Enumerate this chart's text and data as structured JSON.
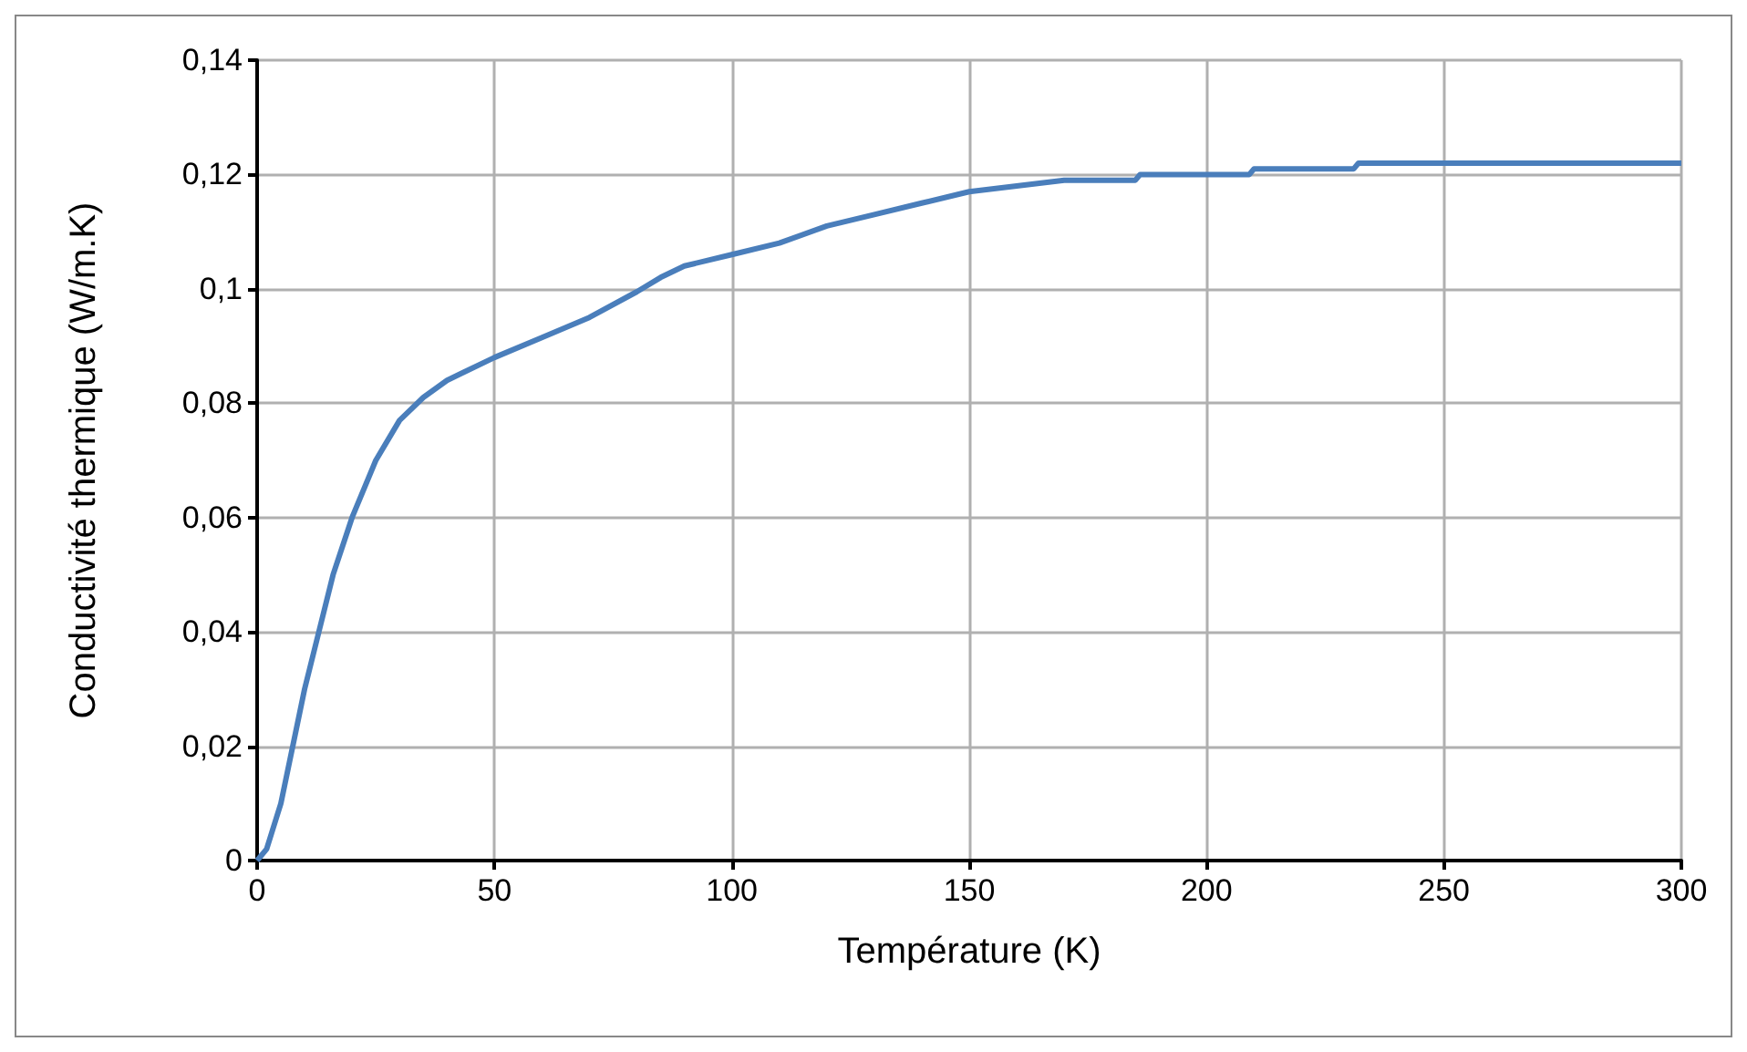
{
  "chart_data": {
    "type": "line",
    "xlabel": "Température (K)",
    "ylabel": "Conductivité thermique (W/m.K)",
    "xlim": [
      0,
      300
    ],
    "xticks": [
      0,
      50,
      100,
      150,
      200,
      250,
      300
    ],
    "ylim": [
      0,
      0.14
    ],
    "yticks": [
      {
        "value": 0,
        "label": "0"
      },
      {
        "value": 0.02,
        "label": "0,02"
      },
      {
        "value": 0.04,
        "label": "0,04"
      },
      {
        "value": 0.06,
        "label": "0,06"
      },
      {
        "value": 0.08,
        "label": "0,08"
      },
      {
        "value": 0.1,
        "label": "0,1"
      },
      {
        "value": 0.12,
        "label": "0,12"
      },
      {
        "value": 0.14,
        "label": "0,14"
      }
    ],
    "grid": true,
    "marker": "none",
    "line_style": "solid",
    "series": [
      {
        "color": "#4a7ebb",
        "x": [
          0,
          2,
          5,
          8,
          10,
          13,
          16,
          20,
          25,
          30,
          35,
          40,
          50,
          60,
          70,
          80,
          85,
          90,
          100,
          110,
          120,
          130,
          140,
          150,
          160,
          170,
          185,
          186,
          209,
          210,
          231,
          232,
          300
        ],
        "values": [
          0,
          0.002,
          0.01,
          0.022,
          0.03,
          0.04,
          0.05,
          0.06,
          0.07,
          0.077,
          0.081,
          0.084,
          0.088,
          0.0915,
          0.095,
          0.0995,
          0.102,
          0.104,
          0.106,
          0.108,
          0.111,
          0.113,
          0.115,
          0.117,
          0.118,
          0.119,
          0.119,
          0.12,
          0.12,
          0.121,
          0.121,
          0.122,
          0.122
        ]
      }
    ]
  }
}
